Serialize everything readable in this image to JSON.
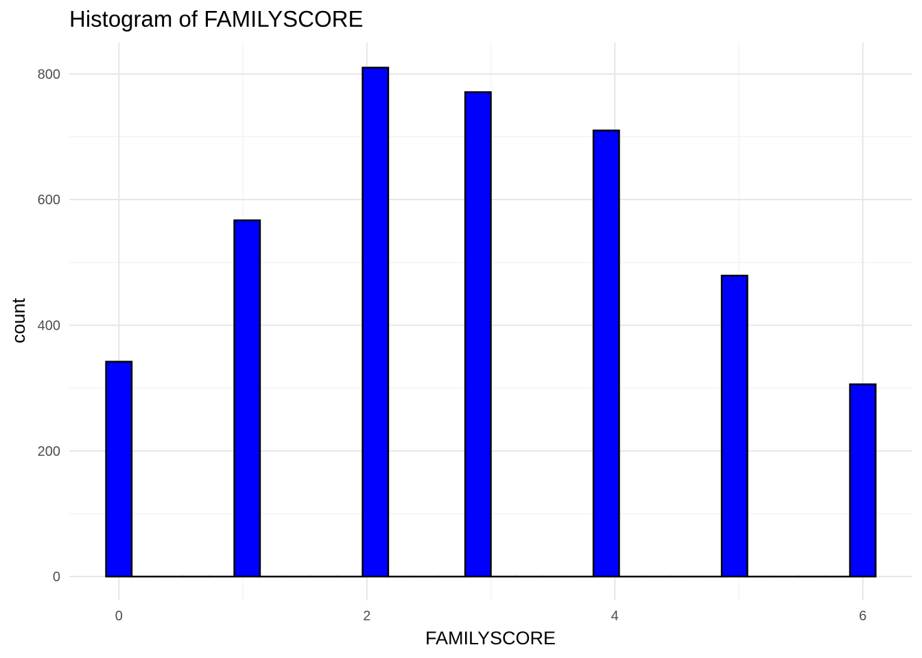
{
  "chart_data": {
    "type": "bar",
    "title": "Histogram of FAMILYSCORE",
    "xlabel": "FAMILYSCORE",
    "ylabel": "count",
    "x_ticks": [
      0,
      2,
      4,
      6
    ],
    "y_ticks": [
      0,
      200,
      400,
      600,
      800
    ],
    "xlim": [
      -0.4,
      6.4
    ],
    "ylim": [
      -38,
      850
    ],
    "bin_width": 0.2069,
    "bins": [
      {
        "x": 0.0,
        "count": 342
      },
      {
        "x": 0.2069,
        "count": 0
      },
      {
        "x": 0.4138,
        "count": 0
      },
      {
        "x": 0.6207,
        "count": 0
      },
      {
        "x": 0.8276,
        "count": 0
      },
      {
        "x": 1.0345,
        "count": 567
      },
      {
        "x": 1.2414,
        "count": 0
      },
      {
        "x": 1.4483,
        "count": 0
      },
      {
        "x": 1.6552,
        "count": 0
      },
      {
        "x": 1.8621,
        "count": 0
      },
      {
        "x": 2.069,
        "count": 810
      },
      {
        "x": 2.2759,
        "count": 0
      },
      {
        "x": 2.4828,
        "count": 0
      },
      {
        "x": 2.6897,
        "count": 0
      },
      {
        "x": 2.8966,
        "count": 771
      },
      {
        "x": 3.1034,
        "count": 0
      },
      {
        "x": 3.3103,
        "count": 0
      },
      {
        "x": 3.5172,
        "count": 0
      },
      {
        "x": 3.7241,
        "count": 0
      },
      {
        "x": 3.931,
        "count": 710
      },
      {
        "x": 4.1379,
        "count": 0
      },
      {
        "x": 4.3448,
        "count": 0
      },
      {
        "x": 4.5517,
        "count": 0
      },
      {
        "x": 4.7586,
        "count": 0
      },
      {
        "x": 4.9655,
        "count": 479
      },
      {
        "x": 5.1724,
        "count": 0
      },
      {
        "x": 5.3793,
        "count": 0
      },
      {
        "x": 5.5862,
        "count": 0
      },
      {
        "x": 5.7931,
        "count": 0
      },
      {
        "x": 6.0,
        "count": 306
      }
    ],
    "grid": true,
    "legend": "none"
  },
  "colors": {
    "bar_fill": "#0000ff",
    "bar_outline": "#000000"
  }
}
